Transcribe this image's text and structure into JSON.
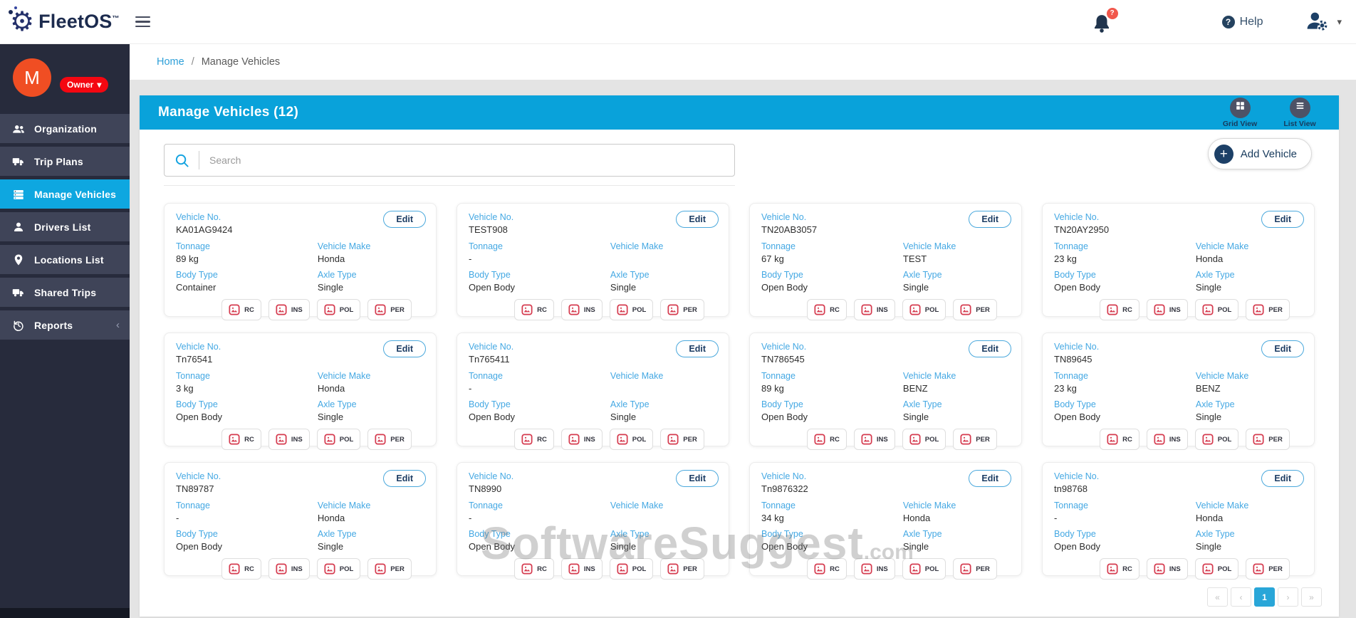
{
  "topbar": {
    "brand": {
      "fleet": "Fleet",
      "os": "OS",
      "tm": "™"
    },
    "bell_badge": "?",
    "help_label": "Help"
  },
  "breadcrumb": {
    "home": "Home",
    "separator": "/",
    "current": "Manage Vehicles"
  },
  "sidebar": {
    "avatar_initial": "M",
    "role_badge": "Owner",
    "items": [
      {
        "label": "Organization",
        "icon": "users",
        "active": false
      },
      {
        "label": "Trip Plans",
        "icon": "truck",
        "active": false
      },
      {
        "label": "Manage Vehicles",
        "icon": "list",
        "active": true
      },
      {
        "label": "Drivers List",
        "icon": "user",
        "active": false
      },
      {
        "label": "Locations List",
        "icon": "pin",
        "active": false
      },
      {
        "label": "Shared Trips",
        "icon": "truck",
        "active": false
      },
      {
        "label": "Reports",
        "icon": "history",
        "active": false,
        "has_chevron": true
      }
    ]
  },
  "main": {
    "header_title": "Manage Vehicles (12)",
    "grid_view_label": "Grid View",
    "list_view_label": "List View",
    "search_placeholder": "Search",
    "add_vehicle_label": "Add Vehicle",
    "edit_label": "Edit",
    "field_labels": {
      "vehicle_no": "Vehicle No.",
      "tonnage": "Tonnage",
      "vehicle_make": "Vehicle Make",
      "body_type": "Body Type",
      "axle_type": "Axle Type"
    },
    "doc_badges": [
      "RC",
      "INS",
      "POL",
      "PER"
    ],
    "pagination": {
      "first": "«",
      "prev": "‹",
      "page": "1",
      "next": "›",
      "last": "»"
    },
    "watermark": {
      "text": "SoftwareSuggest",
      "suffix": ".com"
    }
  },
  "vehicles": [
    {
      "number": "KA01AG9424",
      "tonnage": "89 kg",
      "make": "Honda",
      "body_type": "Container",
      "axle_type": "Single"
    },
    {
      "number": "TEST908",
      "tonnage": "-",
      "make": "",
      "body_type": "Open Body",
      "axle_type": "Single"
    },
    {
      "number": "TN20AB3057",
      "tonnage": "67 kg",
      "make": "TEST",
      "body_type": "Open Body",
      "axle_type": "Single"
    },
    {
      "number": "TN20AY2950",
      "tonnage": "23 kg",
      "make": "Honda",
      "body_type": "Open Body",
      "axle_type": "Single"
    },
    {
      "number": "Tn76541",
      "tonnage": "3 kg",
      "make": "Honda",
      "body_type": "Open Body",
      "axle_type": "Single"
    },
    {
      "number": "Tn765411",
      "tonnage": "-",
      "make": "",
      "body_type": "Open Body",
      "axle_type": "Single"
    },
    {
      "number": "TN786545",
      "tonnage": "89 kg",
      "make": "BENZ",
      "body_type": "Open Body",
      "axle_type": "Single"
    },
    {
      "number": "TN89645",
      "tonnage": "23 kg",
      "make": "BENZ",
      "body_type": "Open Body",
      "axle_type": "Single"
    },
    {
      "number": "TN89787",
      "tonnage": "-",
      "make": "Honda",
      "body_type": "Open Body",
      "axle_type": "Single"
    },
    {
      "number": "TN8990",
      "tonnage": "-",
      "make": "",
      "body_type": "Open Body",
      "axle_type": "Single"
    },
    {
      "number": "Tn9876322",
      "tonnage": "34 kg",
      "make": "Honda",
      "body_type": "Open Body",
      "axle_type": "Single"
    },
    {
      "number": "tn98768",
      "tonnage": "-",
      "make": "Honda",
      "body_type": "Open Body",
      "axle_type": "Single"
    }
  ],
  "colors": {
    "accent_blue": "#09a2da",
    "label_blue": "#44a8e3",
    "sidebar_active": "#0ea7e0",
    "sidebar_bg": "#272b3c",
    "danger_red": "#d53b4f",
    "owner_badge_red": "#f40711",
    "avatar_orange": "#f04e23",
    "navy": "#1d4067"
  }
}
